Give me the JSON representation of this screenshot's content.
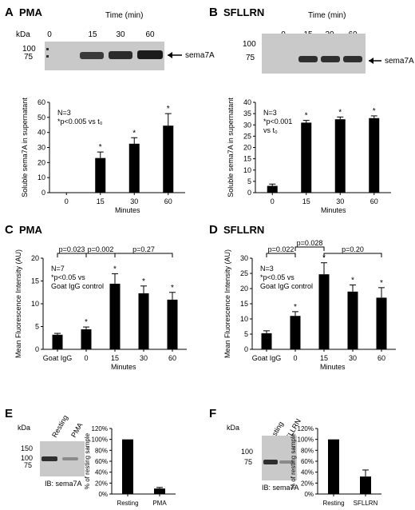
{
  "panels": {
    "A": {
      "letter": "A",
      "title": "PMA"
    },
    "B": {
      "letter": "B",
      "title": "SFLLRN"
    },
    "C": {
      "letter": "C",
      "title": "PMA"
    },
    "D": {
      "letter": "D",
      "title": "SFLLRN"
    },
    "E": {
      "letter": "E"
    },
    "F": {
      "letter": "F"
    }
  },
  "blots": {
    "A": {
      "kda": "kDa",
      "time_label": "Time (min)",
      "lanes": [
        "0",
        "15",
        "30",
        "60"
      ],
      "markers": [
        "100",
        "75"
      ],
      "band_label": "sema7A"
    },
    "B": {
      "time_label": "Time (min)",
      "lanes": [
        "0",
        "15",
        "30",
        "60"
      ],
      "markers": [
        "100",
        "75"
      ],
      "band_label": "sema7A"
    },
    "E": {
      "kda": "kDa",
      "lanes": [
        "Resting",
        "PMA"
      ],
      "markers": [
        "150",
        "100",
        "75"
      ],
      "ib": "IB: sema7A"
    },
    "F": {
      "kda": "kDa",
      "lanes": [
        "Resting",
        "SFLLRN"
      ],
      "markers": [
        "100",
        "75"
      ],
      "ib": "IB: sema7A"
    }
  },
  "chart_data": [
    {
      "id": "A",
      "type": "bar",
      "categories": [
        "0",
        "15",
        "30",
        "60"
      ],
      "values": [
        0,
        23,
        32.5,
        44.5
      ],
      "errors": [
        0,
        4,
        4,
        8
      ],
      "stars": [
        false,
        true,
        true,
        true
      ],
      "ylim": [
        0,
        60
      ],
      "yticks": [
        0,
        10,
        20,
        30,
        40,
        50,
        60
      ],
      "ylabel": "Soluble sema7A in supernatant",
      "xlabel": "Minutes",
      "annotations": [
        "N=3",
        "*p<0.005 vs t₀"
      ]
    },
    {
      "id": "B",
      "type": "bar",
      "categories": [
        "0",
        "15",
        "30",
        "60"
      ],
      "values": [
        3,
        31,
        32.5,
        33
      ],
      "errors": [
        0.8,
        1,
        1,
        1
      ],
      "stars": [
        false,
        true,
        true,
        true
      ],
      "ylim": [
        0,
        40
      ],
      "yticks": [
        0,
        5,
        10,
        15,
        20,
        25,
        30,
        35,
        40
      ],
      "ylabel": "Soluble sema7A in supernatant",
      "xlabel": "Minutes",
      "annotations": [
        "N=3",
        "*p<0.001",
        "vs t₀"
      ]
    },
    {
      "id": "C",
      "type": "bar",
      "categories": [
        "Goat IgG",
        "0",
        "15",
        "30",
        "60"
      ],
      "values": [
        3.2,
        4.4,
        14.4,
        12.3,
        10.9
      ],
      "errors": [
        0.3,
        0.5,
        2.2,
        1.6,
        1.6
      ],
      "stars": [
        false,
        true,
        true,
        true,
        true
      ],
      "ylim": [
        0,
        20
      ],
      "yticks": [
        0,
        5,
        10,
        15,
        20
      ],
      "ylabel": "Mean Fluorescence Intensity (AU)",
      "xlabel": "Minutes",
      "annotations": [
        "N=7",
        "*p<0.05 vs",
        "Goat IgG control"
      ],
      "brackets": [
        {
          "label": "p=0.023",
          "from": 0,
          "to": 1,
          "level": 0
        },
        {
          "label": "p=0.002",
          "from": 1,
          "to": 2,
          "level": 0
        },
        {
          "label": "p=0.27",
          "from": 2,
          "to": 4,
          "level": 0
        }
      ]
    },
    {
      "id": "D",
      "type": "bar",
      "categories": [
        "Goat IgG",
        "0",
        "15",
        "30",
        "60"
      ],
      "values": [
        5.3,
        11,
        24.7,
        19,
        17
      ],
      "errors": [
        0.8,
        1.4,
        3.8,
        2.2,
        3.3
      ],
      "stars": [
        false,
        true,
        true,
        true,
        true
      ],
      "ylim": [
        0,
        30
      ],
      "yticks": [
        0,
        5,
        10,
        15,
        20,
        25,
        30
      ],
      "ylabel": "Mean Fluorescence Intensity (AU)",
      "xlabel": "Minutes",
      "annotations": [
        "N=3",
        "*p<0.05 vs",
        "Goat IgG control"
      ],
      "brackets": [
        {
          "label": "p=0.022",
          "from": 0,
          "to": 1,
          "level": 0
        },
        {
          "label": "p=0.028",
          "from": 1,
          "to": 2,
          "level": 1
        },
        {
          "label": "p=0.20",
          "from": 2,
          "to": 4,
          "level": 0
        }
      ]
    },
    {
      "id": "E",
      "type": "bar",
      "categories": [
        "Resting",
        "PMA"
      ],
      "values": [
        100,
        10
      ],
      "errors": [
        0,
        2
      ],
      "stars": [
        false,
        false
      ],
      "ylim": [
        0,
        120
      ],
      "yticks": [
        "0%",
        "20%",
        "40%",
        "60%",
        "80%",
        "100%",
        "120%"
      ],
      "ylabel": "% of resting sample",
      "xlabel": ""
    },
    {
      "id": "F",
      "type": "bar",
      "categories": [
        "Resting",
        "SFLLRN"
      ],
      "values": [
        100,
        32
      ],
      "errors": [
        0,
        12
      ],
      "stars": [
        false,
        false
      ],
      "ylim": [
        0,
        120
      ],
      "yticks": [
        "0%",
        "20%",
        "40%",
        "60%",
        "80%",
        "100%",
        "120%"
      ],
      "ylabel": "% of resting sample",
      "xlabel": ""
    }
  ]
}
